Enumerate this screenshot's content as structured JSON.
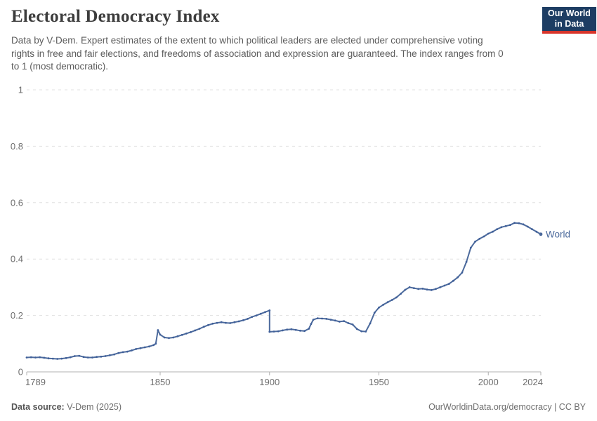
{
  "header": {
    "title": "Electoral Democracy Index",
    "subtitle": "Data by V-Dem. Expert estimates of the extent to which political leaders are elected under comprehensive voting rights in free and fair elections, and freedoms of association and expression are guaranteed. The index ranges from 0 to 1 (most democratic).",
    "logo": {
      "line1": "Our World",
      "line2": "in Data"
    }
  },
  "footer": {
    "source_label": "Data source:",
    "source_value": " V-Dem (2025)",
    "credit": "OurWorldinData.org/democracy | CC BY"
  },
  "colors": {
    "line": "#4c6a9c",
    "dot": "#40609a",
    "grid": "#e0e0e0",
    "axis": "#b0b0b0",
    "tick_text": "#6e6e6e",
    "series_label": "#4c6a9c",
    "logo_bg": "#1d3d63",
    "logo_stripe": "#d8352b"
  },
  "chart_data": {
    "type": "line",
    "title": "Electoral Democracy Index",
    "xlabel": "",
    "ylabel": "",
    "xlim": [
      1789,
      2024
    ],
    "ylim": [
      0,
      1
    ],
    "grid": "horizontal-dashed",
    "x_ticks": [
      1789,
      1850,
      1900,
      1950,
      2000,
      2024
    ],
    "x_tick_labels": [
      "1789",
      "1850",
      "1900",
      "1950",
      "2000",
      "2024"
    ],
    "y_ticks": [
      0,
      0.2,
      0.4,
      0.6,
      0.8,
      1
    ],
    "y_tick_labels": [
      "0",
      "0.2",
      "0.4",
      "0.6",
      "0.8",
      "1"
    ],
    "series": [
      {
        "name": "World",
        "note": "vertical discontinuity at 1900 where index drops from 0.218 to 0.142",
        "points": [
          [
            1789,
            0.051
          ],
          [
            1791,
            0.052
          ],
          [
            1793,
            0.051
          ],
          [
            1795,
            0.052
          ],
          [
            1797,
            0.05
          ],
          [
            1799,
            0.048
          ],
          [
            1801,
            0.047
          ],
          [
            1803,
            0.046
          ],
          [
            1805,
            0.047
          ],
          [
            1807,
            0.049
          ],
          [
            1809,
            0.052
          ],
          [
            1811,
            0.056
          ],
          [
            1813,
            0.057
          ],
          [
            1815,
            0.053
          ],
          [
            1817,
            0.051
          ],
          [
            1819,
            0.051
          ],
          [
            1821,
            0.053
          ],
          [
            1823,
            0.054
          ],
          [
            1825,
            0.056
          ],
          [
            1827,
            0.059
          ],
          [
            1829,
            0.062
          ],
          [
            1831,
            0.067
          ],
          [
            1833,
            0.07
          ],
          [
            1835,
            0.072
          ],
          [
            1837,
            0.076
          ],
          [
            1839,
            0.081
          ],
          [
            1841,
            0.084
          ],
          [
            1843,
            0.087
          ],
          [
            1845,
            0.09
          ],
          [
            1847,
            0.095
          ],
          [
            1848,
            0.1
          ],
          [
            1849,
            0.148
          ],
          [
            1850,
            0.132
          ],
          [
            1852,
            0.122
          ],
          [
            1854,
            0.12
          ],
          [
            1856,
            0.122
          ],
          [
            1858,
            0.126
          ],
          [
            1860,
            0.131
          ],
          [
            1862,
            0.136
          ],
          [
            1864,
            0.141
          ],
          [
            1866,
            0.147
          ],
          [
            1868,
            0.153
          ],
          [
            1870,
            0.16
          ],
          [
            1872,
            0.166
          ],
          [
            1874,
            0.171
          ],
          [
            1876,
            0.174
          ],
          [
            1878,
            0.176
          ],
          [
            1880,
            0.174
          ],
          [
            1882,
            0.173
          ],
          [
            1884,
            0.176
          ],
          [
            1886,
            0.179
          ],
          [
            1888,
            0.183
          ],
          [
            1890,
            0.188
          ],
          [
            1892,
            0.195
          ],
          [
            1894,
            0.2
          ],
          [
            1896,
            0.206
          ],
          [
            1898,
            0.212
          ],
          [
            1900,
            0.218
          ],
          [
            1900,
            0.142
          ],
          [
            1902,
            0.143
          ],
          [
            1904,
            0.144
          ],
          [
            1906,
            0.147
          ],
          [
            1908,
            0.15
          ],
          [
            1910,
            0.151
          ],
          [
            1912,
            0.149
          ],
          [
            1914,
            0.146
          ],
          [
            1916,
            0.145
          ],
          [
            1918,
            0.153
          ],
          [
            1919,
            0.17
          ],
          [
            1920,
            0.185
          ],
          [
            1922,
            0.19
          ],
          [
            1924,
            0.189
          ],
          [
            1926,
            0.188
          ],
          [
            1928,
            0.185
          ],
          [
            1930,
            0.182
          ],
          [
            1932,
            0.178
          ],
          [
            1934,
            0.18
          ],
          [
            1936,
            0.173
          ],
          [
            1938,
            0.168
          ],
          [
            1940,
            0.152
          ],
          [
            1942,
            0.144
          ],
          [
            1944,
            0.143
          ],
          [
            1946,
            0.172
          ],
          [
            1948,
            0.21
          ],
          [
            1950,
            0.228
          ],
          [
            1952,
            0.238
          ],
          [
            1954,
            0.247
          ],
          [
            1956,
            0.255
          ],
          [
            1958,
            0.264
          ],
          [
            1960,
            0.277
          ],
          [
            1962,
            0.291
          ],
          [
            1964,
            0.3
          ],
          [
            1966,
            0.297
          ],
          [
            1968,
            0.294
          ],
          [
            1970,
            0.295
          ],
          [
            1972,
            0.292
          ],
          [
            1974,
            0.29
          ],
          [
            1976,
            0.294
          ],
          [
            1978,
            0.3
          ],
          [
            1980,
            0.306
          ],
          [
            1982,
            0.312
          ],
          [
            1984,
            0.323
          ],
          [
            1986,
            0.335
          ],
          [
            1988,
            0.352
          ],
          [
            1990,
            0.39
          ],
          [
            1992,
            0.44
          ],
          [
            1994,
            0.462
          ],
          [
            1996,
            0.472
          ],
          [
            1998,
            0.48
          ],
          [
            2000,
            0.49
          ],
          [
            2002,
            0.497
          ],
          [
            2004,
            0.506
          ],
          [
            2006,
            0.513
          ],
          [
            2008,
            0.517
          ],
          [
            2010,
            0.521
          ],
          [
            2012,
            0.528
          ],
          [
            2014,
            0.527
          ],
          [
            2016,
            0.523
          ],
          [
            2018,
            0.515
          ],
          [
            2020,
            0.506
          ],
          [
            2022,
            0.497
          ],
          [
            2024,
            0.488
          ]
        ]
      }
    ],
    "legend": {
      "position": "end-of-line",
      "entries": [
        "World"
      ]
    }
  }
}
